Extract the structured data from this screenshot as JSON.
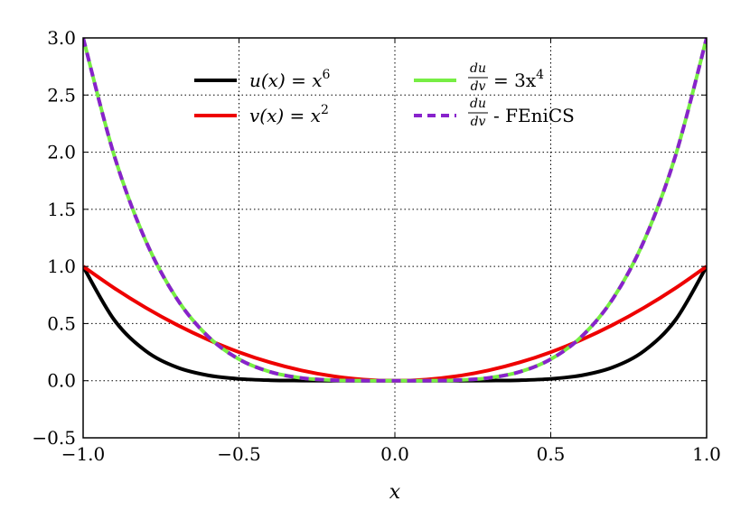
{
  "chart_data": {
    "type": "line",
    "xlabel": "x",
    "ylabel": "",
    "xlim": [
      -1.0,
      1.0
    ],
    "ylim": [
      -0.5,
      3.0
    ],
    "grid": true,
    "grid_style": "dotted",
    "legend_placement": "top-center",
    "x_ticks": [
      -1.0,
      -0.5,
      0.0,
      0.5,
      1.0
    ],
    "x_tick_labels": [
      "−1.0",
      "−0.5",
      "0.0",
      "0.5",
      "1.0"
    ],
    "y_ticks": [
      -0.5,
      0.0,
      0.5,
      1.0,
      1.5,
      2.0,
      2.5,
      3.0
    ],
    "y_tick_labels": [
      "−0.5",
      "0.0",
      "0.5",
      "1.0",
      "1.5",
      "2.0",
      "2.5",
      "3.0"
    ],
    "series": [
      {
        "name": "u(x) = x⁶",
        "color": "#000000",
        "dash": "solid",
        "x": [
          -1.0,
          -0.9,
          -0.8,
          -0.7,
          -0.6,
          -0.5,
          -0.4,
          -0.3,
          -0.2,
          -0.1,
          0.0,
          0.1,
          0.2,
          0.3,
          0.4,
          0.5,
          0.6,
          0.7,
          0.8,
          0.9,
          1.0
        ],
        "values": [
          1.0,
          0.531,
          0.262,
          0.118,
          0.047,
          0.016,
          0.004,
          0.001,
          0.0,
          0.0,
          0.0,
          0.0,
          0.0,
          0.001,
          0.004,
          0.016,
          0.047,
          0.118,
          0.262,
          0.531,
          1.0
        ]
      },
      {
        "name": "v(x) = x²",
        "color": "#ee0000",
        "dash": "solid",
        "x": [
          -1.0,
          -0.9,
          -0.8,
          -0.7,
          -0.6,
          -0.5,
          -0.4,
          -0.3,
          -0.2,
          -0.1,
          0.0,
          0.1,
          0.2,
          0.3,
          0.4,
          0.5,
          0.6,
          0.7,
          0.8,
          0.9,
          1.0
        ],
        "values": [
          1.0,
          0.81,
          0.64,
          0.49,
          0.36,
          0.25,
          0.16,
          0.09,
          0.04,
          0.01,
          0.0,
          0.01,
          0.04,
          0.09,
          0.16,
          0.25,
          0.36,
          0.49,
          0.64,
          0.81,
          1.0
        ]
      },
      {
        "name": "du/dv = 3x⁴",
        "color": "#77ee44",
        "dash": "solid",
        "x": [
          -1.0,
          -0.9,
          -0.8,
          -0.7,
          -0.6,
          -0.5,
          -0.4,
          -0.3,
          -0.2,
          -0.1,
          0.0,
          0.1,
          0.2,
          0.3,
          0.4,
          0.5,
          0.6,
          0.7,
          0.8,
          0.9,
          1.0
        ],
        "values": [
          3.0,
          1.968,
          1.229,
          0.72,
          0.389,
          0.188,
          0.077,
          0.024,
          0.005,
          0.0,
          0.0,
          0.0,
          0.005,
          0.024,
          0.077,
          0.188,
          0.389,
          0.72,
          1.229,
          1.968,
          3.0
        ]
      },
      {
        "name": "du/dv - FEniCS",
        "color": "#8822cc",
        "dash": "dashed",
        "x": [
          -1.0,
          -0.9,
          -0.8,
          -0.7,
          -0.6,
          -0.5,
          -0.4,
          -0.3,
          -0.2,
          -0.1,
          0.0,
          0.1,
          0.2,
          0.3,
          0.4,
          0.5,
          0.6,
          0.7,
          0.8,
          0.9,
          1.0
        ],
        "values": [
          3.0,
          1.968,
          1.229,
          0.72,
          0.389,
          0.188,
          0.077,
          0.024,
          0.005,
          0.0,
          0.0,
          0.0,
          0.005,
          0.024,
          0.077,
          0.188,
          0.389,
          0.72,
          1.229,
          1.968,
          3.0
        ]
      }
    ],
    "legend": [
      {
        "id": "u",
        "text": "u(x) = x",
        "sup": "6"
      },
      {
        "id": "v",
        "text": "v(x) = x",
        "sup": "2"
      },
      {
        "id": "dudv",
        "num": "du",
        "den": "dv",
        "text": "= 3x",
        "sup": "4"
      },
      {
        "id": "fenics",
        "num": "du",
        "den": "dv",
        "text": "- FEniCS"
      }
    ]
  }
}
